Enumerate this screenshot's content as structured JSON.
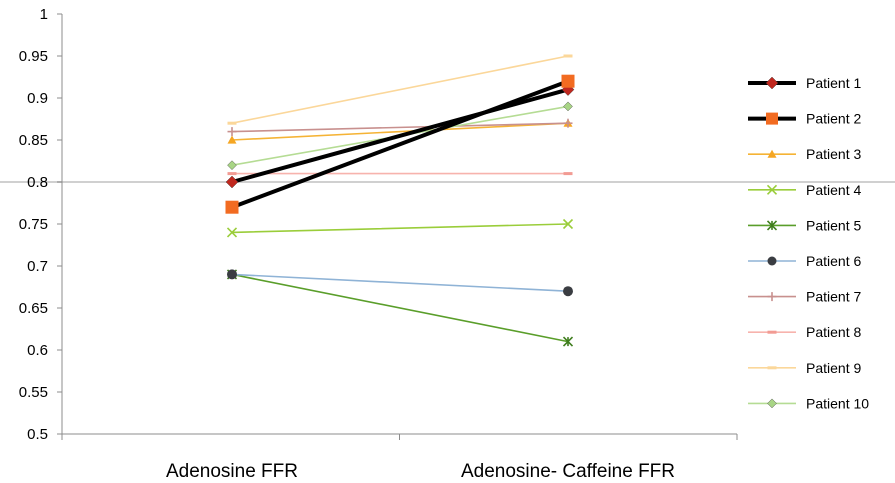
{
  "chart_data": {
    "type": "line",
    "categories": [
      "Adenosine FFR",
      "Adenosine- Caffeine FFR"
    ],
    "ylim": [
      0.5,
      1
    ],
    "ytick_step": 0.05,
    "yticks": [
      "0.5",
      "0.55",
      "0.6",
      "0.65",
      "0.7",
      "0.75",
      "0.8",
      "0.85",
      "0.9",
      "0.95",
      "1"
    ],
    "reference_line": 0.8,
    "reference_line_color": "#d0d0d0",
    "grid": false,
    "legend_position": "right",
    "series": [
      {
        "name": "Patient 1",
        "values": [
          0.8,
          0.91
        ],
        "color": "#000000",
        "marker": "diamond",
        "marker_color": "#c0281f",
        "emphasis": true
      },
      {
        "name": "Patient 2",
        "values": [
          0.77,
          0.92
        ],
        "color": "#000000",
        "marker": "square",
        "marker_color": "#f26b21",
        "emphasis": true
      },
      {
        "name": "Patient 3",
        "values": [
          0.85,
          0.87
        ],
        "color": "#f5b335",
        "marker": "triangle",
        "marker_color": "#f5a623",
        "emphasis": false
      },
      {
        "name": "Patient 4",
        "values": [
          0.74,
          0.75
        ],
        "color": "#9acd3a",
        "marker": "x",
        "marker_color": "#9acd3a",
        "emphasis": false
      },
      {
        "name": "Patient 5",
        "values": [
          0.69,
          0.61
        ],
        "color": "#5a9e2a",
        "marker": "star",
        "marker_color": "#3f7d1d",
        "emphasis": false
      },
      {
        "name": "Patient 6",
        "values": [
          0.69,
          0.67
        ],
        "color": "#8fb3d6",
        "marker": "circle",
        "marker_color": "#3a3d42",
        "emphasis": false
      },
      {
        "name": "Patient 7",
        "values": [
          0.86,
          0.87
        ],
        "color": "#c8908e",
        "marker": "plus",
        "marker_color": "#c8908e",
        "emphasis": false
      },
      {
        "name": "Patient 8",
        "values": [
          0.81,
          0.81
        ],
        "color": "#f7b3ad",
        "marker": "dash",
        "marker_color": "#f29b93",
        "emphasis": false
      },
      {
        "name": "Patient 9",
        "values": [
          0.87,
          0.95
        ],
        "color": "#fbd79a",
        "marker": "dash",
        "marker_color": "#fbd79a",
        "emphasis": false
      },
      {
        "name": "Patient 10",
        "values": [
          0.82,
          0.89
        ],
        "color": "#b5dc94",
        "marker": "diamond",
        "marker_color": "#a8d585",
        "emphasis": false
      }
    ]
  }
}
